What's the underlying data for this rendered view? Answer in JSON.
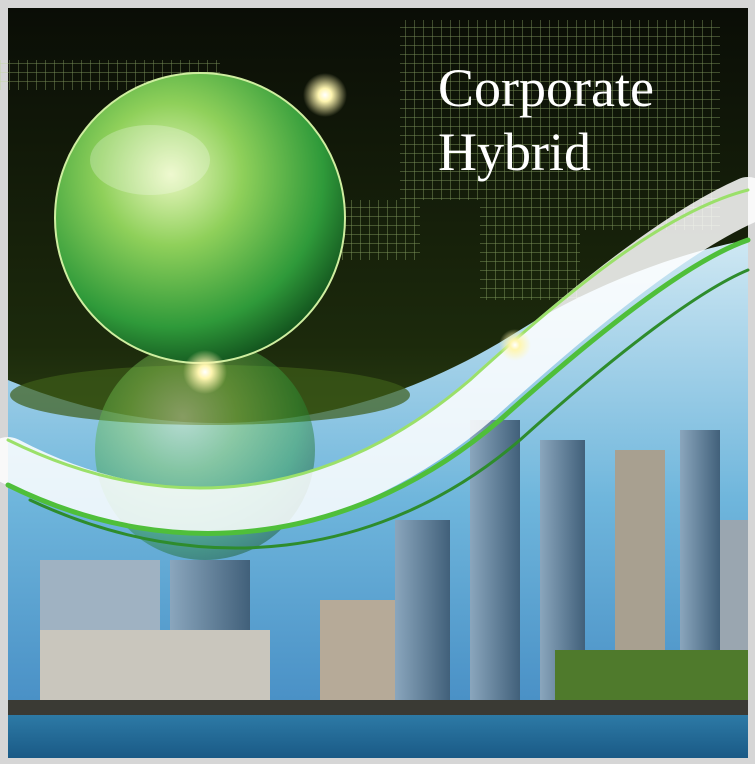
{
  "title": {
    "line1": "Corporate",
    "line2": "Hybrid"
  }
}
